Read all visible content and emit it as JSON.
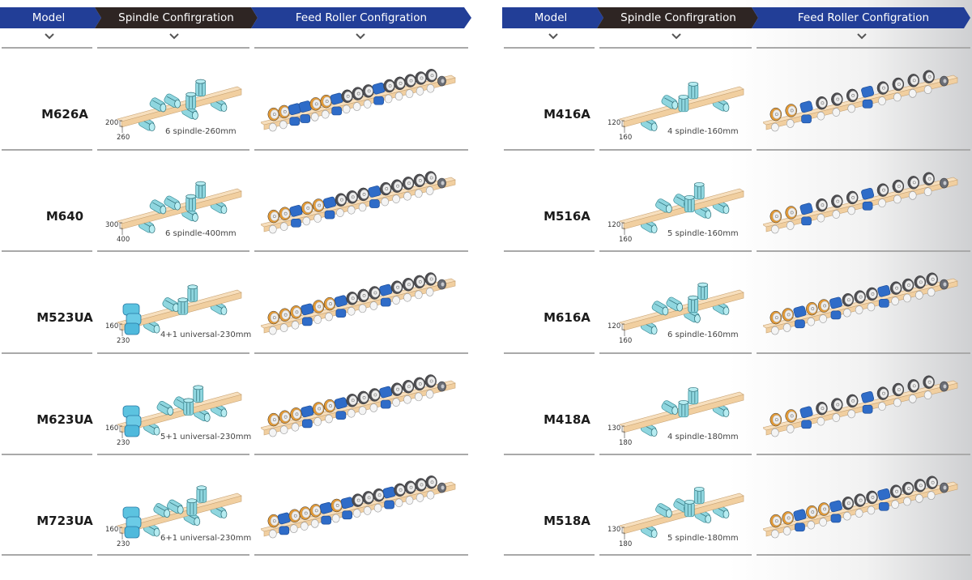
{
  "headers": {
    "model": "Model",
    "spindle": "Spindle Confirgration",
    "feed": "Feed Roller Configration"
  },
  "colors": {
    "header_blue": "#223e97",
    "header_dark": "#2e2523",
    "beam": "#f1cfa0",
    "spindle": "#8fd6df",
    "feed_blue": "#2f6cc8",
    "feed_orange": "#e39a36",
    "feed_gray": "#4e4e52"
  },
  "left": {
    "rows": [
      {
        "model": "M626A",
        "dim_h": "200",
        "dim_w": "260",
        "caption": "6 spindle-260mm",
        "spindles": 6,
        "universal": false,
        "feed_pattern": "o o b b o o b g g g b g g g g g d"
      },
      {
        "model": "M640",
        "dim_h": "300",
        "dim_w": "400",
        "caption": "6 spindle-400mm",
        "spindles": 6,
        "universal": false,
        "feed_pattern": "o o b o o b g g g b g g g g g d"
      },
      {
        "model": "M523UA",
        "dim_h": "160",
        "dim_w": "230",
        "caption": "4+1 universal-230mm",
        "spindles": 5,
        "universal": true,
        "feed_pattern": "o o o b o o b g g g b g g g g d"
      },
      {
        "model": "M623UA",
        "dim_h": "160",
        "dim_w": "230",
        "caption": "5+1 universal-230mm",
        "spindles": 6,
        "universal": true,
        "feed_pattern": "o o o b o o b g g g b g g g g d"
      },
      {
        "model": "M723UA",
        "dim_h": "160",
        "dim_w": "230",
        "caption": "6+1 universal-230mm",
        "spindles": 7,
        "universal": true,
        "feed_pattern": "o b o o o b o b g g g b g g g g d"
      }
    ]
  },
  "right": {
    "rows": [
      {
        "model": "M416A",
        "dim_h": "120",
        "dim_w": "160",
        "caption": "4 spindle-160mm",
        "spindles": 4,
        "universal": false,
        "feed_pattern": "o o b g g g b g g g g d"
      },
      {
        "model": "M516A",
        "dim_h": "120",
        "dim_w": "160",
        "caption": "5 spindle-160mm",
        "spindles": 5,
        "universal": false,
        "feed_pattern": "o o b g g g b g g g g d"
      },
      {
        "model": "M616A",
        "dim_h": "120",
        "dim_w": "160",
        "caption": "6 spindle-160mm",
        "spindles": 6,
        "universal": false,
        "feed_pattern": "o o b o o b g g g b g g g g d"
      },
      {
        "model": "M418A",
        "dim_h": "130",
        "dim_w": "180",
        "caption": "4 spindle-180mm",
        "spindles": 4,
        "universal": false,
        "feed_pattern": "o o b g g g b g g g g d"
      },
      {
        "model": "M518A",
        "dim_h": "130",
        "dim_w": "180",
        "caption": "5 spindle-180mm",
        "spindles": 5,
        "universal": false,
        "feed_pattern": "o o b o o b g g g b g g g g d"
      }
    ]
  }
}
